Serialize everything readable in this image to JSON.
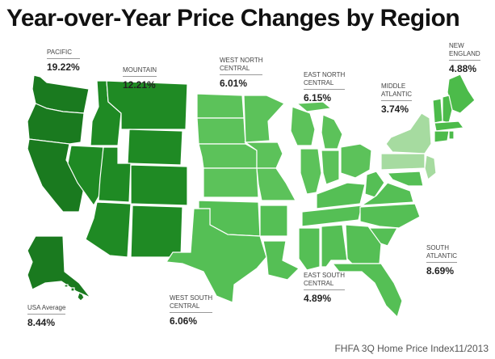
{
  "title": "Year-over-Year Price Changes by Region",
  "source": "FHFA 3Q Home Price Index11/2013",
  "colors": {
    "pacific": "#1a7a1f",
    "mountain": "#1f8a24",
    "central": "#5cc25a",
    "middle_atlantic": "#a6dba0",
    "new_england": "#4cbb4a",
    "south": "#55bf55",
    "border": "#ffffff"
  },
  "regions": {
    "pacific": {
      "name": "PACIFIC",
      "value": "19.22%"
    },
    "mountain": {
      "name": "MOUNTAIN",
      "value": "12.21%"
    },
    "west_north_central": {
      "name_line1": "WEST NORTH",
      "name_line2": "CENTRAL",
      "value": "6.01%"
    },
    "east_north_central": {
      "name_line1": "EAST NORTH",
      "name_line2": "CENTRAL",
      "value": "6.15%"
    },
    "middle_atlantic": {
      "name_line1": "MIDDLE",
      "name_line2": "ATLANTIC",
      "value": "3.74%"
    },
    "new_england": {
      "name_line1": "NEW",
      "name_line2": "ENGLAND",
      "value": "4.88%"
    },
    "south_atlantic": {
      "name_line1": "SOUTH",
      "name_line2": "ATLANTIC",
      "value": "8.69%"
    },
    "east_south_central": {
      "name_line1": "EAST SOUTH",
      "name_line2": "CENTRAL",
      "value": "4.89%"
    },
    "west_south_central": {
      "name_line1": "WEST SOUTH",
      "name_line2": "CENTRAL",
      "value": "6.06%"
    },
    "usa_average": {
      "name": "USA Average",
      "value": "8.44%"
    }
  }
}
